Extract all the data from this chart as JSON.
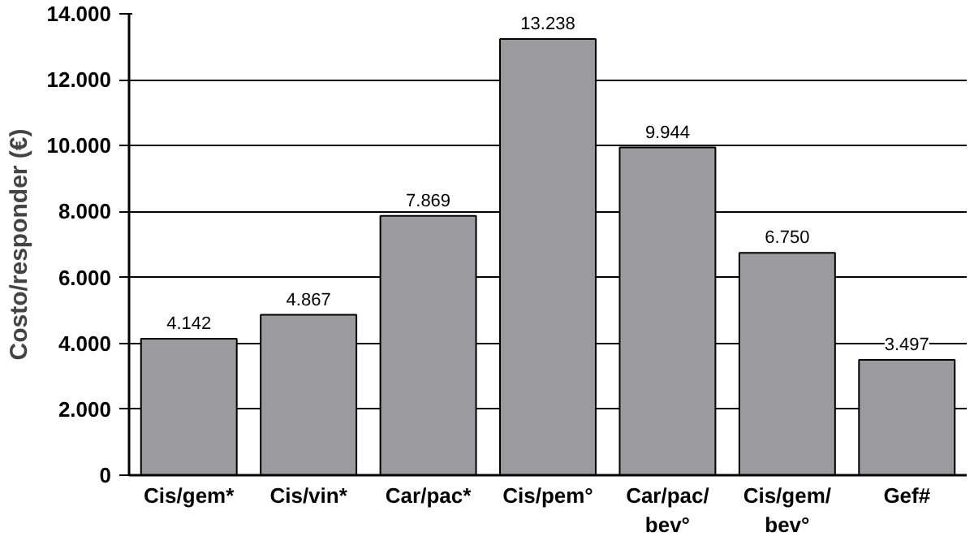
{
  "chart_data": {
    "type": "bar",
    "ylabel": "Costo/responder (€)",
    "categories": [
      "Cis/gem*",
      "Cis/vin*",
      "Car/pac*",
      "Cis/pem°",
      "Car/pac/bev°",
      "Cis/gem/bev°",
      "Gef#"
    ],
    "values": [
      4142,
      4867,
      7869,
      13238,
      9944,
      6750,
      3497
    ],
    "value_labels": [
      "4.142",
      "4.867",
      "7.869",
      "13.238",
      "9.944",
      "6.750",
      "3.497"
    ],
    "color": "#9b9b9f",
    "ylim": [
      0,
      14000
    ],
    "yticks": [
      {
        "value": 0,
        "label": "0"
      },
      {
        "value": 2000,
        "label": "2.000"
      },
      {
        "value": 4000,
        "label": "4.000"
      },
      {
        "value": 6000,
        "label": "6.000"
      },
      {
        "value": 8000,
        "label": "8.000"
      },
      {
        "value": 10000,
        "label": "10.000"
      },
      {
        "value": 12000,
        "label": "12.000"
      },
      {
        "value": 14000,
        "label": "14.000"
      }
    ],
    "grid": "y"
  }
}
